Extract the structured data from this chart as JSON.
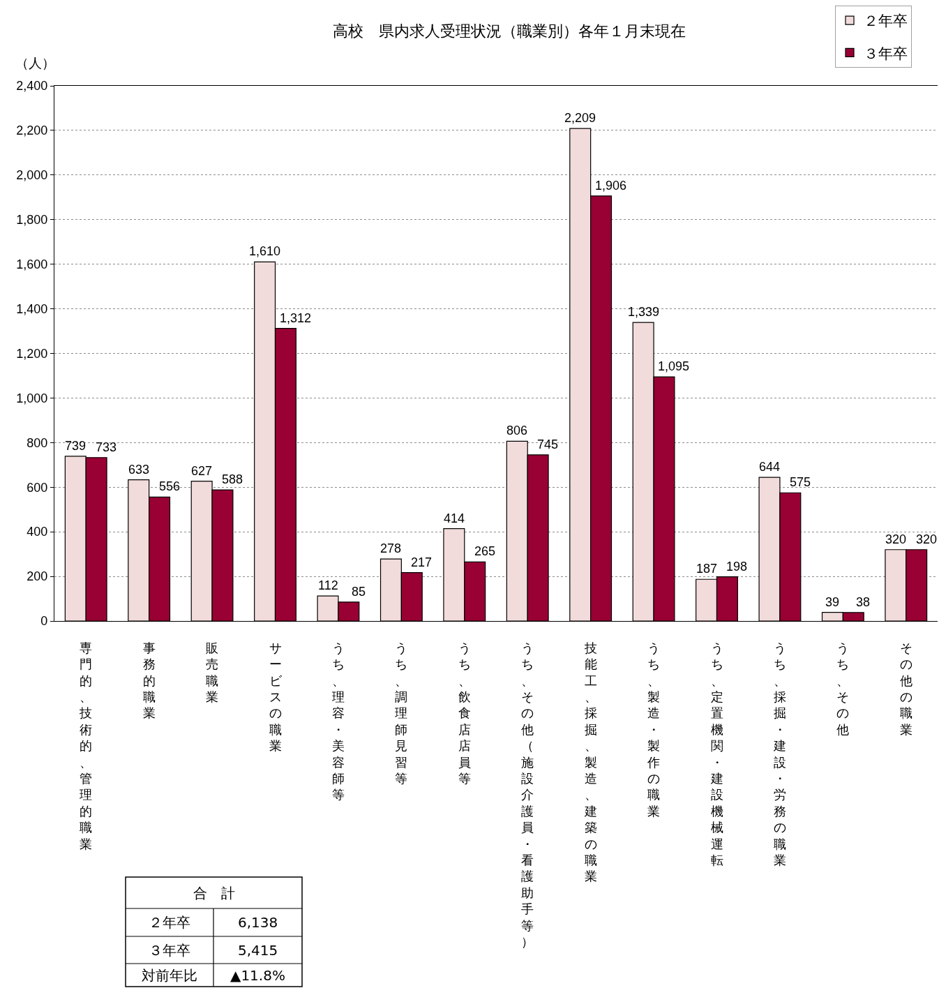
{
  "chart_data": {
    "type": "bar",
    "title": "高校　県内求人受理状況（職業別）各年１月末現在",
    "ylabel": "（人）",
    "categories": [
      "専門的、技術的、管理的職業",
      "事務的職業",
      "販売職業",
      "サービスの職業",
      "うち、理容・美容師等",
      "うち、調理師見習等",
      "うち、飲食店店員等",
      "うち、その他（施設介護員・看護助手等）",
      "技能工、採掘、製造、建築の職業",
      "うち、製造・製作の職業",
      "うち、定置機関・建設機械運転",
      "うち、採掘・建設・労務の職業",
      "うち、その他",
      "その他の職業"
    ],
    "series": [
      {
        "name": "２年卒",
        "color": "#f2dcdb",
        "values": [
          739,
          633,
          627,
          1610,
          112,
          278,
          414,
          806,
          2209,
          1339,
          187,
          644,
          39,
          320
        ],
        "value_labels": [
          "739",
          "633",
          "627",
          "1,610",
          "112",
          "278",
          "414",
          "806",
          "2,209",
          "1,339",
          "187",
          "644",
          "39",
          "320"
        ]
      },
      {
        "name": "３年卒",
        "color": "#990033",
        "values": [
          733,
          556,
          588,
          1312,
          85,
          217,
          265,
          745,
          1906,
          1095,
          198,
          575,
          38,
          320
        ],
        "value_labels": [
          "733",
          "556",
          "588",
          "1,312",
          "85",
          "217",
          "265",
          "745",
          "1,906",
          "1,095",
          "198",
          "575",
          "38",
          "320"
        ]
      }
    ],
    "ylim": [
      0,
      2400
    ],
    "yticks": [
      0,
      200,
      400,
      600,
      800,
      {
        "value": 1000,
        "label": "1,000"
      },
      {
        "value": 1200,
        "label": "1,200"
      },
      {
        "value": 1400,
        "label": "1,400"
      },
      {
        "value": 1600,
        "label": "1,600"
      },
      {
        "value": 1800,
        "label": "1,800"
      },
      {
        "value": 2000,
        "label": "2,000"
      },
      {
        "value": 2200,
        "label": "2,200"
      },
      {
        "value": 2400,
        "label": "2,400"
      }
    ],
    "grid": "y",
    "legend": "top right",
    "annotations": [
      "合　計",
      "２年卒",
      "6,138",
      "３年卒",
      "5,415",
      "対前年比",
      "▲11.8%"
    ]
  }
}
